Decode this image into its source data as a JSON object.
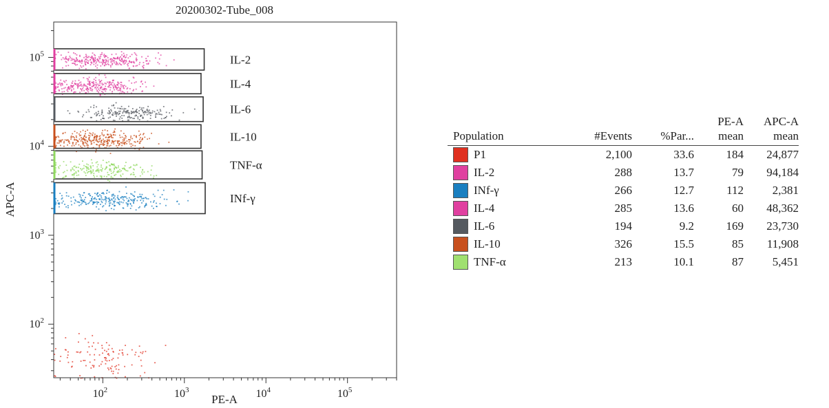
{
  "chart_data": [
    {
      "type": "scatter",
      "title": "20200302-Tube_008",
      "xlabel": "PE-A",
      "ylabel": "APC-A",
      "x_scale": "log",
      "y_scale": "log",
      "xlim": [
        25,
        400000
      ],
      "ylim": [
        25,
        250000
      ],
      "x_ticks": [
        {
          "value": 100,
          "base": "10",
          "exp": "2"
        },
        {
          "value": 1000,
          "base": "10",
          "exp": "3"
        },
        {
          "value": 10000,
          "base": "10",
          "exp": "4"
        },
        {
          "value": 100000,
          "base": "10",
          "exp": "5"
        }
      ],
      "y_ticks": [
        {
          "value": 100,
          "base": "10",
          "exp": "2"
        },
        {
          "value": 1000,
          "base": "10",
          "exp": "3"
        },
        {
          "value": 10000,
          "base": "10",
          "exp": "4"
        },
        {
          "value": 100000,
          "base": "10",
          "exp": "5"
        }
      ],
      "gates": [
        {
          "label": "IL-2",
          "x_range": [
            25,
            1750
          ],
          "y_range": [
            72000,
            125000
          ],
          "color": "#e040a0"
        },
        {
          "label": "IL-4",
          "x_range": [
            25,
            1600
          ],
          "y_range": [
            39000,
            66000
          ],
          "color": "#e040a0"
        },
        {
          "label": "IL-6",
          "x_range": [
            25,
            1700
          ],
          "y_range": [
            19000,
            36000
          ],
          "color": "#555a60"
        },
        {
          "label": "IL-10",
          "x_range": [
            25,
            1600
          ],
          "y_range": [
            9500,
            17500
          ],
          "color": "#c8501e"
        },
        {
          "label": "TNF-α",
          "x_range": [
            25,
            1650
          ],
          "y_range": [
            4300,
            8900
          ],
          "color": "#90d860"
        },
        {
          "label": "INf-γ",
          "x_range": [
            25,
            1800
          ],
          "y_range": [
            1750,
            3900
          ],
          "color": "#1a7fc0"
        }
      ],
      "clusters": [
        {
          "population": "IL-2",
          "color": "#e040a0",
          "count": 288,
          "x_center": 100,
          "x_spread": 0.3,
          "y_center": 94000,
          "y_spread": 0.04
        },
        {
          "population": "IL-4",
          "color": "#e040a0",
          "count": 285,
          "x_center": 75,
          "x_spread": 0.3,
          "y_center": 48000,
          "y_spread": 0.045
        },
        {
          "population": "IL-6",
          "color": "#555a60",
          "count": 194,
          "x_center": 200,
          "x_spread": 0.28,
          "y_center": 24000,
          "y_spread": 0.045
        },
        {
          "population": "IL-10",
          "color": "#c8501e",
          "count": 326,
          "x_center": 90,
          "x_spread": 0.3,
          "y_center": 12000,
          "y_spread": 0.05
        },
        {
          "population": "TNF-α",
          "color": "#90d860",
          "count": 213,
          "x_center": 95,
          "x_spread": 0.3,
          "y_center": 5500,
          "y_spread": 0.05
        },
        {
          "population": "INf-γ",
          "color": "#1a7fc0",
          "count": 266,
          "x_center": 120,
          "x_spread": 0.38,
          "y_center": 2550,
          "y_spread": 0.05
        },
        {
          "population": "P1",
          "color": "#e03020",
          "count": 120,
          "x_center": 90,
          "x_spread": 0.3,
          "y_center": 42,
          "y_spread": 0.12
        }
      ]
    },
    {
      "type": "table",
      "columns": [
        {
          "l1": "",
          "l2": "Population"
        },
        {
          "l1": "",
          "l2": "#Events"
        },
        {
          "l1": "",
          "l2": "%Par..."
        },
        {
          "l1": "PE-A",
          "l2": "mean"
        },
        {
          "l1": "APC-A",
          "l2": "mean"
        }
      ],
      "rows": [
        {
          "name": "P1",
          "color": "#e03020",
          "events": "2,100",
          "par": "33.6",
          "pe_mean": "184",
          "apc_mean": "24,877"
        },
        {
          "name": "IL-2",
          "color": "#e040a0",
          "events": "288",
          "par": "13.7",
          "pe_mean": "79",
          "apc_mean": "94,184"
        },
        {
          "name": "INf-γ",
          "color": "#1a7fc0",
          "events": "266",
          "par": "12.7",
          "pe_mean": "112",
          "apc_mean": "2,381"
        },
        {
          "name": "IL-4",
          "color": "#e040a0",
          "events": "285",
          "par": "13.6",
          "pe_mean": "60",
          "apc_mean": "48,362"
        },
        {
          "name": "IL-6",
          "color": "#555a60",
          "events": "194",
          "par": "9.2",
          "pe_mean": "169",
          "apc_mean": "23,730"
        },
        {
          "name": "IL-10",
          "color": "#c8501e",
          "events": "326",
          "par": "15.5",
          "pe_mean": "85",
          "apc_mean": "11,908"
        },
        {
          "name": "TNF-α",
          "color": "#a0e070",
          "events": "213",
          "par": "10.1",
          "pe_mean": "87",
          "apc_mean": "5,451"
        }
      ]
    }
  ]
}
